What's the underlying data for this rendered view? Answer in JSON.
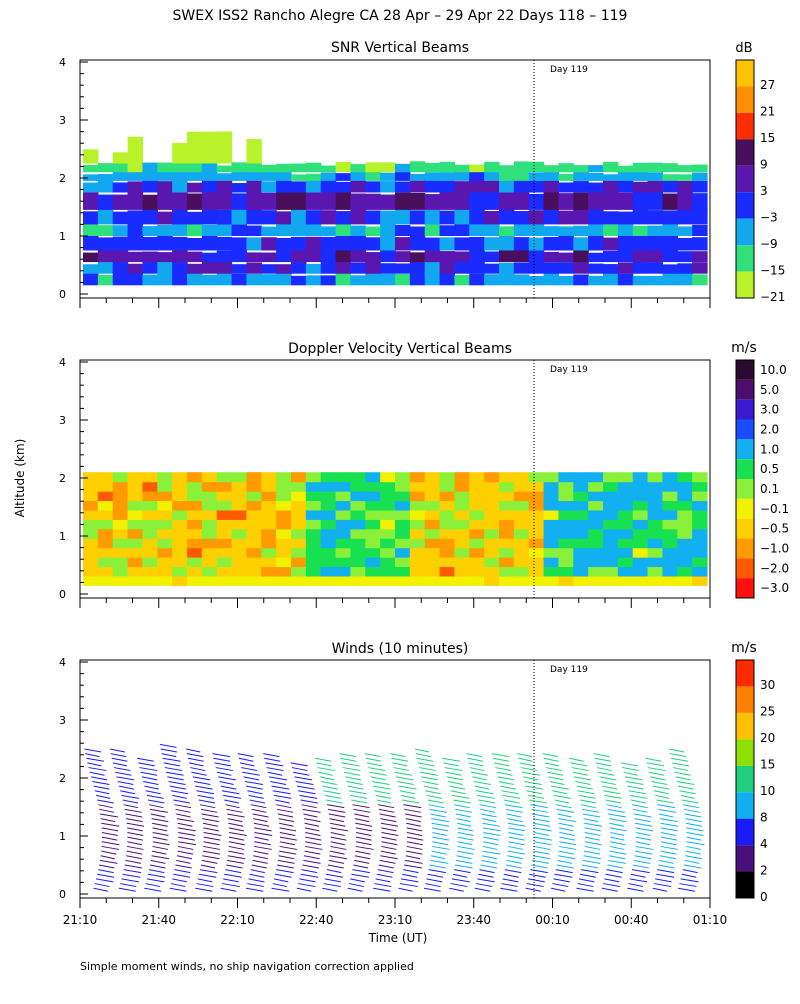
{
  "page_title": "SWEX ISS2 Rancho Alegre CA  28 Apr – 29 Apr 22 Days 118 – 119",
  "y_axis_label": "Altitude (km)",
  "x_axis_label": "Time (UT)",
  "footnote": "Simple moment winds, no ship navigation correction applied",
  "chart_data": [
    {
      "type": "heatmap",
      "title": "SNR Vertical Beams",
      "colorbar_unit": "dB",
      "colorbar_labels": [
        "27",
        "21",
        "15",
        "9",
        "3",
        "−3",
        "−9",
        "−15",
        "−21"
      ],
      "colorbar_colors": [
        "#ffc300",
        "#ff8f00",
        "#ff2d00",
        "#4a0f5c",
        "#5a17b0",
        "#1a2bff",
        "#12a8f0",
        "#30e07a",
        "#b9f22a"
      ],
      "annotation": "Day 119",
      "ylim": [
        0,
        4
      ],
      "yticks": [
        "0",
        "1",
        "2",
        "3",
        "4"
      ],
      "xticks": [
        "21:10",
        "21:40",
        "22:10",
        "22:40",
        "23:10",
        "23:40",
        "00:10",
        "00:40",
        "01:10"
      ],
      "day_boundary_time": "00:00"
    },
    {
      "type": "heatmap",
      "title": "Doppler Velocity Vertical Beams",
      "colorbar_unit": "m/s",
      "colorbar_labels": [
        "10.0",
        "5.0",
        "3.0",
        "2.0",
        "1.0",
        "0.5",
        "0.1",
        "−0.1",
        "−0.5",
        "−1.0",
        "−2.0",
        "−3.0"
      ],
      "colorbar_colors": [
        "#2a0a2e",
        "#4a0f6e",
        "#3a1ad0",
        "#1a4cff",
        "#12b0f0",
        "#18e050",
        "#8af03a",
        "#f2f200",
        "#ffd000",
        "#ff9a00",
        "#ff5a00",
        "#ff1010"
      ],
      "annotation": "Day 119",
      "ylim": [
        0,
        4
      ],
      "yticks": [
        "0",
        "1",
        "2",
        "3",
        "4"
      ],
      "xticks": [
        "21:10",
        "21:40",
        "22:10",
        "22:40",
        "23:10",
        "23:40",
        "00:10",
        "00:40",
        "01:10"
      ],
      "day_boundary_time": "00:00"
    },
    {
      "type": "wind-barbs",
      "title": "Winds (10 minutes)",
      "colorbar_unit": "m/s",
      "colorbar_labels": [
        "30",
        "25",
        "20",
        "15",
        "10",
        "8",
        "4",
        "2",
        "0"
      ],
      "colorbar_colors": [
        "#ff2a00",
        "#ff8000",
        "#ffc000",
        "#8ee000",
        "#20d080",
        "#10b0f0",
        "#1a1aff",
        "#4a0f7a",
        "#000000"
      ],
      "annotation": "Day 119",
      "ylim": [
        0,
        4
      ],
      "yticks": [
        "0",
        "1",
        "2",
        "3",
        "4"
      ],
      "xticks": [
        "21:10",
        "21:40",
        "22:10",
        "22:40",
        "23:10",
        "23:40",
        "00:10",
        "00:40",
        "01:10"
      ],
      "day_boundary_time": "00:00",
      "profile_count": 24
    }
  ]
}
